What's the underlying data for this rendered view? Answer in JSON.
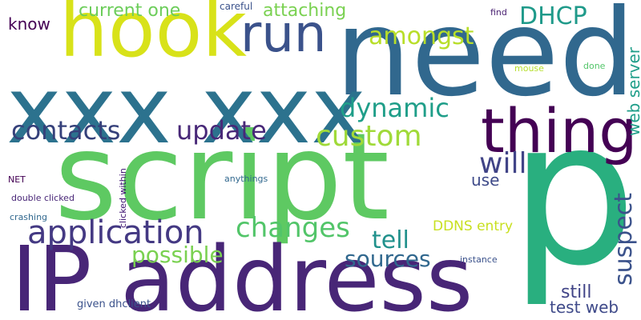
{
  "words": [
    {
      "text": "need",
      "color": "#31688e"
    },
    {
      "text": "p",
      "color": "#29af7f"
    },
    {
      "text": "script",
      "color": "#5ec962"
    },
    {
      "text": "IP address",
      "color": "#482677"
    },
    {
      "text": "xxx xxx",
      "color": "#2c728e"
    },
    {
      "text": "hook",
      "color": "#d8e219"
    },
    {
      "text": "run",
      "color": "#3b528b"
    },
    {
      "text": "thing",
      "color": "#440154"
    },
    {
      "text": "application",
      "color": "#443983"
    },
    {
      "text": "changes",
      "color": "#52c569"
    },
    {
      "text": "contacts",
      "color": "#35407a"
    },
    {
      "text": "update",
      "color": "#482878"
    },
    {
      "text": "custom",
      "color": "#a0da39"
    },
    {
      "text": "dynamic",
      "color": "#1f9e89"
    },
    {
      "text": "DHCP",
      "color": "#1f9a8a"
    },
    {
      "text": "amongst",
      "color": "#b8de29"
    },
    {
      "text": "attaching",
      "color": "#7ad151"
    },
    {
      "text": "current one",
      "color": "#6ccd5a"
    },
    {
      "text": "know",
      "color": "#440154"
    },
    {
      "text": "careful",
      "color": "#3b528b"
    },
    {
      "text": "find",
      "color": "#481f70"
    },
    {
      "text": "web server",
      "color": "#1f9e89"
    },
    {
      "text": "done",
      "color": "#52c569"
    },
    {
      "text": "mouse",
      "color": "#b5de2b"
    },
    {
      "text": "will",
      "color": "#414487"
    },
    {
      "text": "use",
      "color": "#3e4a89"
    },
    {
      "text": "suspect",
      "color": "#3b528b"
    },
    {
      "text": "tell",
      "color": "#21918c"
    },
    {
      "text": "sources",
      "color": "#31688e"
    },
    {
      "text": "possible",
      "color": "#7ad151"
    },
    {
      "text": "DDNS entry",
      "color": "#c8e020"
    },
    {
      "text": "instance",
      "color": "#3b528b"
    },
    {
      "text": "still",
      "color": "#414487"
    },
    {
      "text": "test web",
      "color": "#3e4989"
    },
    {
      "text": "given dhclient",
      "color": "#3b528b"
    },
    {
      "text": "anythings",
      "color": "#31688e"
    },
    {
      "text": "NET",
      "color": "#440154"
    },
    {
      "text": "double clicked",
      "color": "#482677"
    },
    {
      "text": "crashing",
      "color": "#31688e"
    },
    {
      "text": "clicked within",
      "color": "#3b0f70"
    }
  ]
}
